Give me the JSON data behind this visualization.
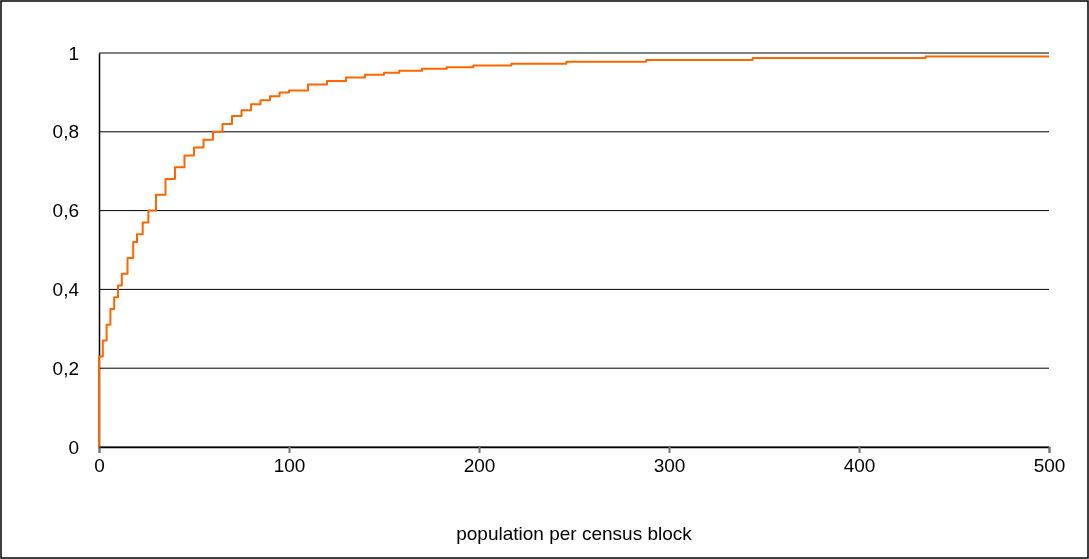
{
  "chart_data": {
    "type": "step",
    "xlabel": "population per census block",
    "x": [
      0,
      0,
      2,
      4,
      6,
      8,
      10,
      12,
      15,
      18,
      20,
      23,
      26,
      30,
      35,
      40,
      45,
      50,
      55,
      60,
      65,
      70,
      75,
      80,
      85,
      90,
      95,
      100,
      110,
      120,
      130,
      140,
      150,
      158,
      170,
      183,
      197,
      217,
      246,
      288,
      344,
      435,
      500
    ],
    "series": [
      {
        "color": "#ff6600",
        "values": [
          0,
          0.23,
          0.27,
          0.31,
          0.35,
          0.38,
          0.41,
          0.44,
          0.48,
          0.52,
          0.54,
          0.57,
          0.6,
          0.64,
          0.68,
          0.71,
          0.74,
          0.76,
          0.78,
          0.8,
          0.82,
          0.84,
          0.855,
          0.87,
          0.88,
          0.89,
          0.9,
          0.905,
          0.92,
          0.929,
          0.938,
          0.945,
          0.95,
          0.955,
          0.96,
          0.964,
          0.968,
          0.973,
          0.978,
          0.982,
          0.987,
          0.991,
          0.991
        ]
      }
    ],
    "xlim": [
      0,
      500
    ],
    "xticks": [
      0,
      100,
      200,
      300,
      400,
      500
    ],
    "ylim": [
      0,
      1
    ],
    "yticks": [
      0,
      {
        "value": 0.2,
        "label": "0,2"
      },
      {
        "value": 0.4,
        "label": "0,4"
      },
      {
        "value": 0.6,
        "label": "0,6"
      },
      {
        "value": 0.8,
        "label": "0,8"
      },
      1
    ],
    "grid": "y"
  }
}
